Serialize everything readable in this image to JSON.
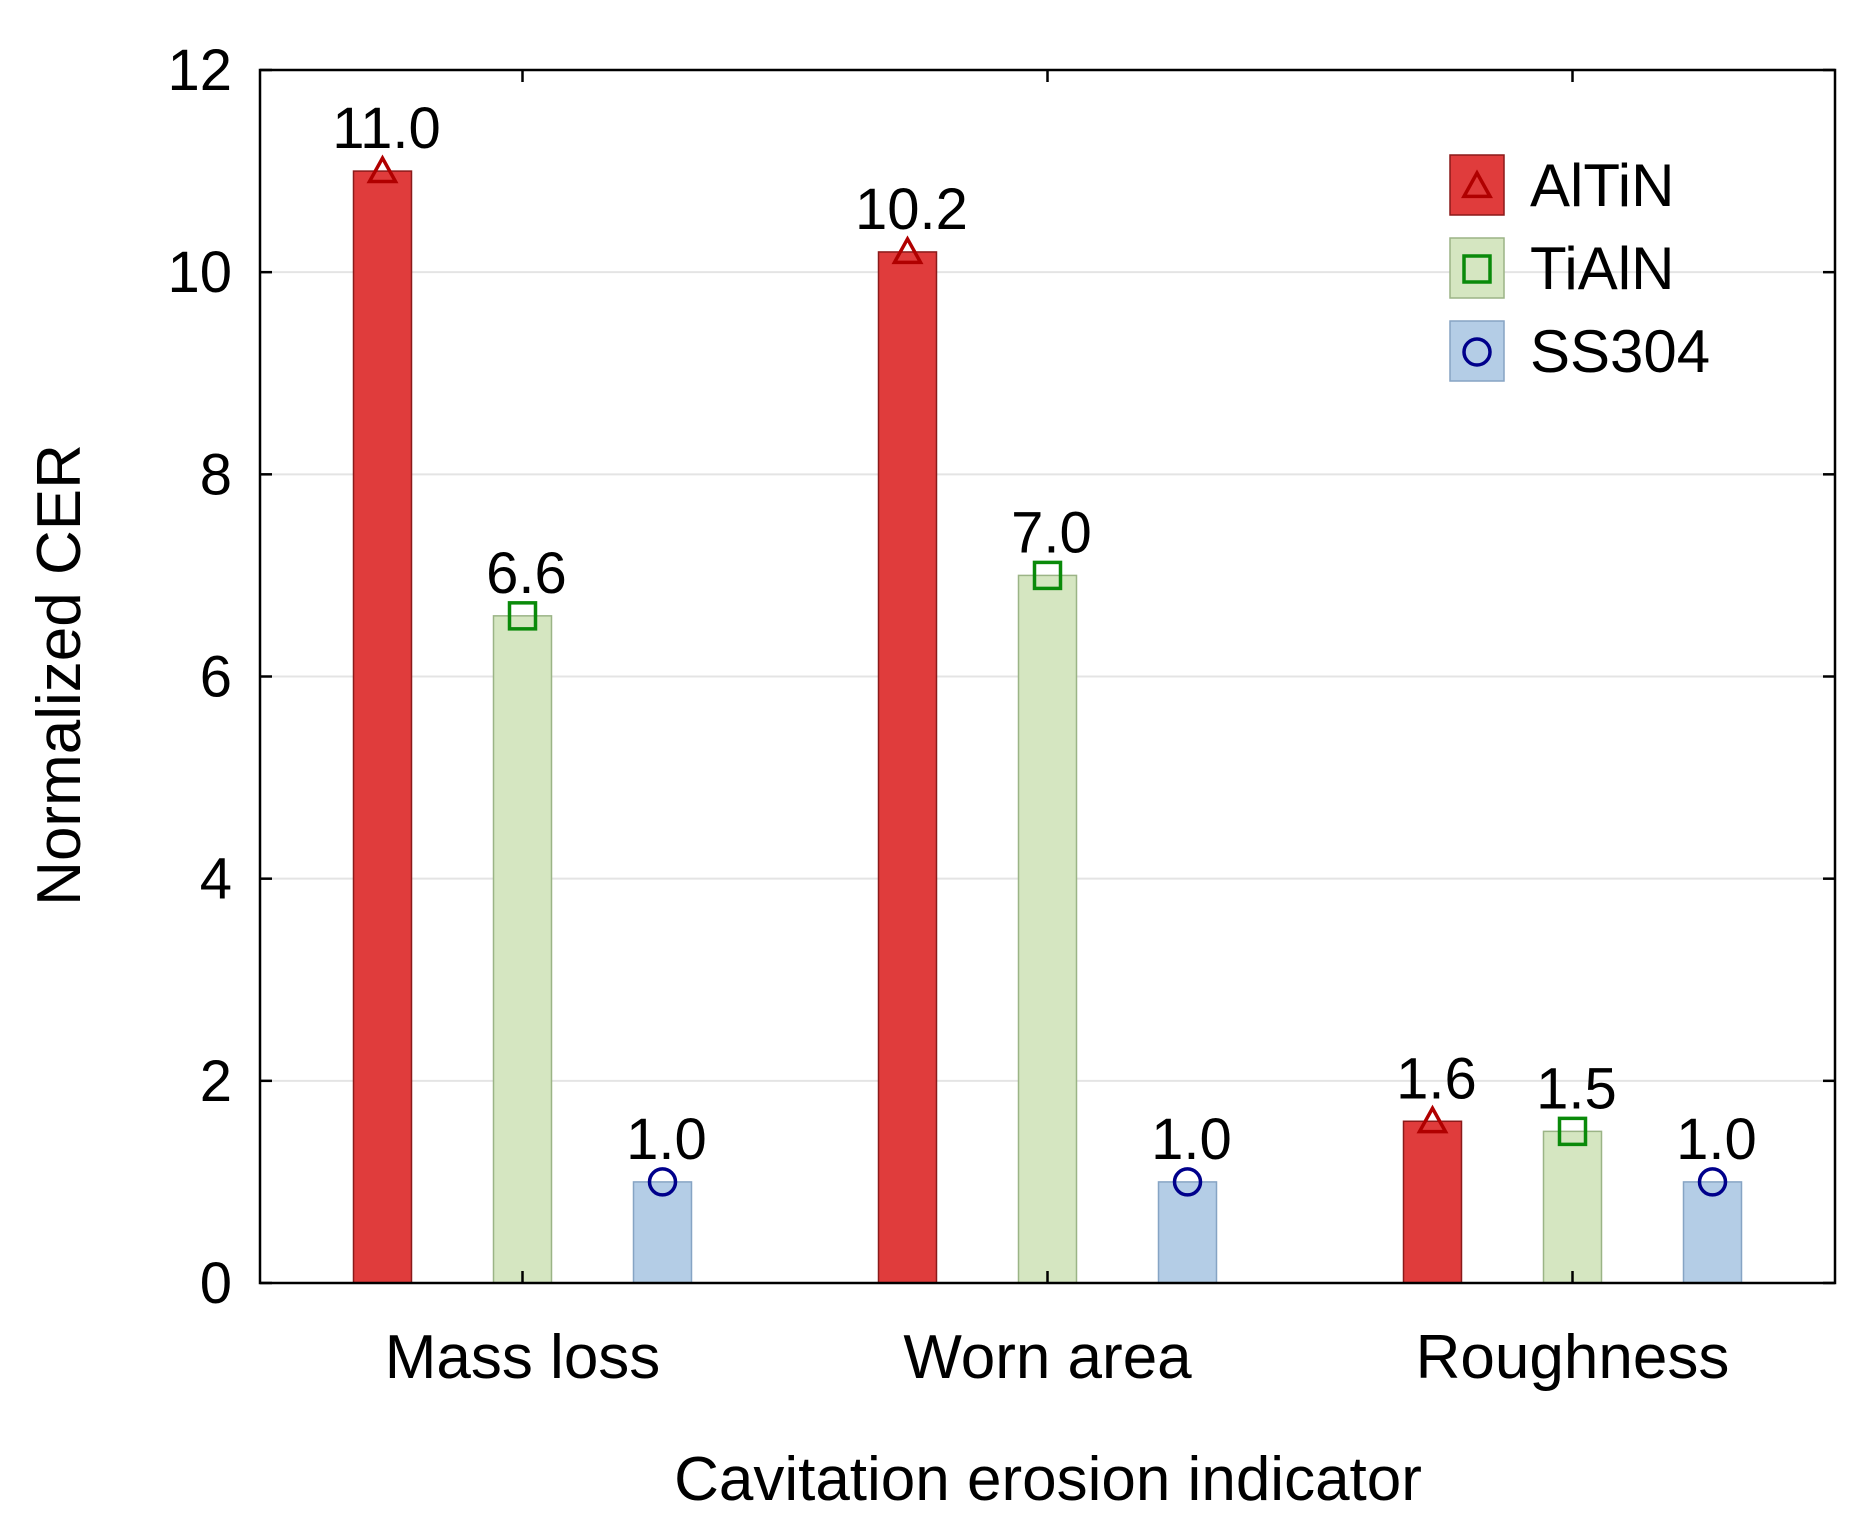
{
  "chart_data": {
    "type": "bar",
    "title": "",
    "xlabel": "Cavitation erosion indicator",
    "ylabel": "Normalized CER",
    "ylim": [
      0,
      12
    ],
    "yticks": [
      0,
      2,
      4,
      6,
      8,
      10,
      12
    ],
    "grid": true,
    "legend_position": "top-right",
    "categories": [
      "Mass loss",
      "Worn area",
      "Roughness"
    ],
    "series": [
      {
        "name": "AlTiN",
        "values": [
          11.0,
          10.2,
          1.6
        ],
        "labels": [
          "11.0",
          "10.2",
          "1.6"
        ],
        "marker": "triangle",
        "fill": "#e03c3c",
        "stroke": "#8b1a1a",
        "marker_color": "#b00000"
      },
      {
        "name": "TiAlN",
        "values": [
          6.6,
          7.0,
          1.5
        ],
        "labels": [
          "6.6",
          "7.0",
          "1.5"
        ],
        "marker": "square",
        "fill": "#d5e6c1",
        "stroke": "#9bb486",
        "marker_color": "#0a8a0a"
      },
      {
        "name": "SS304",
        "values": [
          1.0,
          1.0,
          1.0
        ],
        "labels": [
          "1.0",
          "1.0",
          "1.0"
        ],
        "marker": "circle",
        "fill": "#b4cde6",
        "stroke": "#86a4c4",
        "marker_color": "#00008b"
      }
    ]
  }
}
